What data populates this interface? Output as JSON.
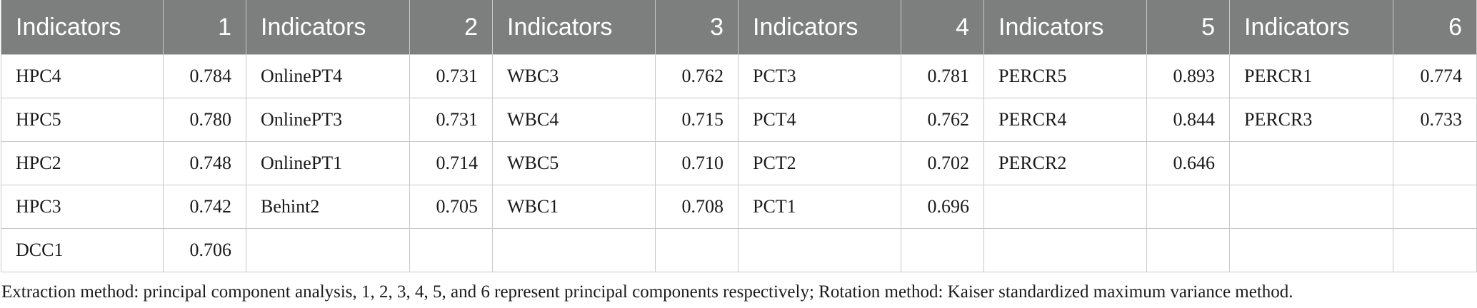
{
  "table": {
    "columns": [
      {
        "indicator_header": "Indicators",
        "component_header": "1",
        "rows": [
          {
            "indicator": "HPC4",
            "loading": "0.784"
          },
          {
            "indicator": "HPC5",
            "loading": "0.780"
          },
          {
            "indicator": "HPC2",
            "loading": "0.748"
          },
          {
            "indicator": "HPC3",
            "loading": "0.742"
          },
          {
            "indicator": "DCC1",
            "loading": "0.706"
          }
        ]
      },
      {
        "indicator_header": "Indicators",
        "component_header": "2",
        "rows": [
          {
            "indicator": "OnlinePT4",
            "loading": "0.731"
          },
          {
            "indicator": "OnlinePT3",
            "loading": "0.731"
          },
          {
            "indicator": "OnlinePT1",
            "loading": "0.714"
          },
          {
            "indicator": "Behint2",
            "loading": "0.705"
          },
          {
            "indicator": "",
            "loading": ""
          }
        ]
      },
      {
        "indicator_header": "Indicators",
        "component_header": "3",
        "rows": [
          {
            "indicator": "WBC3",
            "loading": "0.762"
          },
          {
            "indicator": "WBC4",
            "loading": "0.715"
          },
          {
            "indicator": "WBC5",
            "loading": "0.710"
          },
          {
            "indicator": "WBC1",
            "loading": "0.708"
          },
          {
            "indicator": "",
            "loading": ""
          }
        ]
      },
      {
        "indicator_header": "Indicators",
        "component_header": "4",
        "rows": [
          {
            "indicator": "PCT3",
            "loading": "0.781"
          },
          {
            "indicator": "PCT4",
            "loading": "0.762"
          },
          {
            "indicator": "PCT2",
            "loading": "0.702"
          },
          {
            "indicator": "PCT1",
            "loading": "0.696"
          },
          {
            "indicator": "",
            "loading": ""
          }
        ]
      },
      {
        "indicator_header": "Indicators",
        "component_header": "5",
        "rows": [
          {
            "indicator": "PERCR5",
            "loading": "0.893"
          },
          {
            "indicator": "PERCR4",
            "loading": "0.844"
          },
          {
            "indicator": "PERCR2",
            "loading": "0.646"
          },
          {
            "indicator": "",
            "loading": ""
          },
          {
            "indicator": "",
            "loading": ""
          }
        ]
      },
      {
        "indicator_header": "Indicators",
        "component_header": "6",
        "rows": [
          {
            "indicator": "PERCR1",
            "loading": "0.774"
          },
          {
            "indicator": "PERCR3",
            "loading": "0.733"
          },
          {
            "indicator": "",
            "loading": ""
          },
          {
            "indicator": "",
            "loading": ""
          },
          {
            "indicator": "",
            "loading": ""
          }
        ]
      }
    ]
  },
  "footnote": "Extraction method: principal component analysis, 1, 2, 3, 4, 5, and 6 represent principal components respectively; Rotation method: Kaiser standardized maximum variance method.",
  "colors": {
    "header_bg": "#7c7f7d",
    "header_text": "#ffffff",
    "grid": "#c8c8c8",
    "text": "#1a1a1a"
  }
}
